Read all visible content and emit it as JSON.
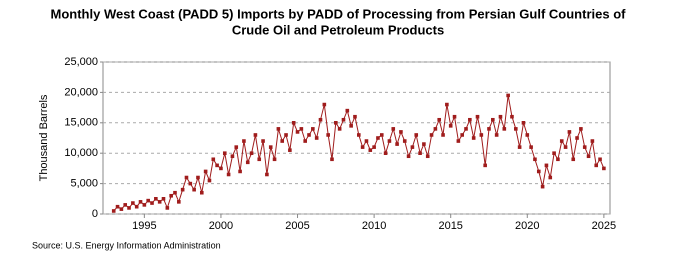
{
  "chart_data": {
    "type": "line",
    "title": [
      "Monthly West Coast (PADD 5) Imports by PADD of Processing from Persian Gulf Countries of",
      "Crude Oil and Petroleum Products"
    ],
    "y_label": "Thousand Barrels",
    "source": "Source: U.S. Energy Information Administration",
    "x": [
      1993,
      1993.25,
      1993.5,
      1993.75,
      1994,
      1994.25,
      1994.5,
      1994.75,
      1995,
      1995.25,
      1995.5,
      1995.75,
      1996,
      1996.25,
      1996.5,
      1996.75,
      1997,
      1997.25,
      1997.5,
      1997.75,
      1998,
      1998.25,
      1998.5,
      1998.75,
      1999,
      1999.25,
      1999.5,
      1999.75,
      2000,
      2000.25,
      2000.5,
      2000.75,
      2001,
      2001.25,
      2001.5,
      2001.75,
      2002,
      2002.25,
      2002.5,
      2002.75,
      2003,
      2003.25,
      2003.5,
      2003.75,
      2004,
      2004.25,
      2004.5,
      2004.75,
      2005,
      2005.25,
      2005.5,
      2005.75,
      2006,
      2006.25,
      2006.5,
      2006.75,
      2007,
      2007.25,
      2007.5,
      2007.75,
      2008,
      2008.25,
      2008.5,
      2008.75,
      2009,
      2009.25,
      2009.5,
      2009.75,
      2010,
      2010.25,
      2010.5,
      2010.75,
      2011,
      2011.25,
      2011.5,
      2011.75,
      2012,
      2012.25,
      2012.5,
      2012.75,
      2013,
      2013.25,
      2013.5,
      2013.75,
      2014,
      2014.25,
      2014.5,
      2014.75,
      2015,
      2015.25,
      2015.5,
      2015.75,
      2016,
      2016.25,
      2016.5,
      2016.75,
      2017,
      2017.25,
      2017.5,
      2017.75,
      2018,
      2018.25,
      2018.5,
      2018.75,
      2019,
      2019.25,
      2019.5,
      2019.75,
      2020,
      2020.25,
      2020.5,
      2020.75,
      2021,
      2021.25,
      2021.5,
      2021.75,
      2022,
      2022.25,
      2022.5,
      2022.75,
      2023,
      2023.25,
      2023.5,
      2023.75,
      2024,
      2024.25,
      2024.5,
      2024.75,
      2025
    ],
    "series": [
      {
        "color": "#a01c1c",
        "values": [
          500,
          1200,
          800,
          1500,
          1000,
          1800,
          1200,
          2000,
          1500,
          2200,
          1800,
          2500,
          2000,
          2500,
          1000,
          3000,
          3500,
          2000,
          4000,
          6000,
          5000,
          4000,
          6000,
          3500,
          7000,
          5500,
          9000,
          8000,
          7500,
          10000,
          6500,
          9500,
          11000,
          7000,
          12000,
          8500,
          10000,
          13000,
          9000,
          12000,
          6500,
          11000,
          9000,
          14000,
          12000,
          13000,
          10500,
          15000,
          13500,
          14000,
          12000,
          13000,
          14000,
          12500,
          15500,
          18000,
          13000,
          9000,
          15000,
          14000,
          15500,
          17000,
          14500,
          16000,
          13000,
          11000,
          12000,
          10500,
          11000,
          12500,
          13000,
          10000,
          12000,
          14000,
          11500,
          13500,
          12000,
          9500,
          11000,
          13000,
          10000,
          11500,
          9500,
          13000,
          14000,
          15500,
          13000,
          18000,
          14500,
          16000,
          12000,
          13000,
          14000,
          15500,
          12500,
          16000,
          13000,
          8000,
          14000,
          15500,
          13000,
          16000,
          14000,
          19500,
          16000,
          14000,
          11000,
          15000,
          13000,
          11000,
          9000,
          7000,
          4500,
          8000,
          6000,
          10000,
          9000,
          12000,
          11000,
          13500,
          9000,
          12500,
          14000,
          11000,
          9500,
          12000,
          8000,
          9000,
          7500
        ]
      }
    ],
    "xlim": [
      1992.3,
      2025.4
    ],
    "xticks": [
      1995,
      2000,
      2005,
      2010,
      2015,
      2020,
      2025
    ],
    "ylim": [
      0,
      25000
    ],
    "yticks": [
      0,
      {
        "value": 5000,
        "label": "5,000"
      },
      {
        "value": 10000,
        "label": "10,000"
      },
      {
        "value": 15000,
        "label": "15,000"
      },
      {
        "value": 20000,
        "label": "20,000"
      },
      {
        "value": 25000,
        "label": "25,000"
      }
    ],
    "grid": true
  }
}
